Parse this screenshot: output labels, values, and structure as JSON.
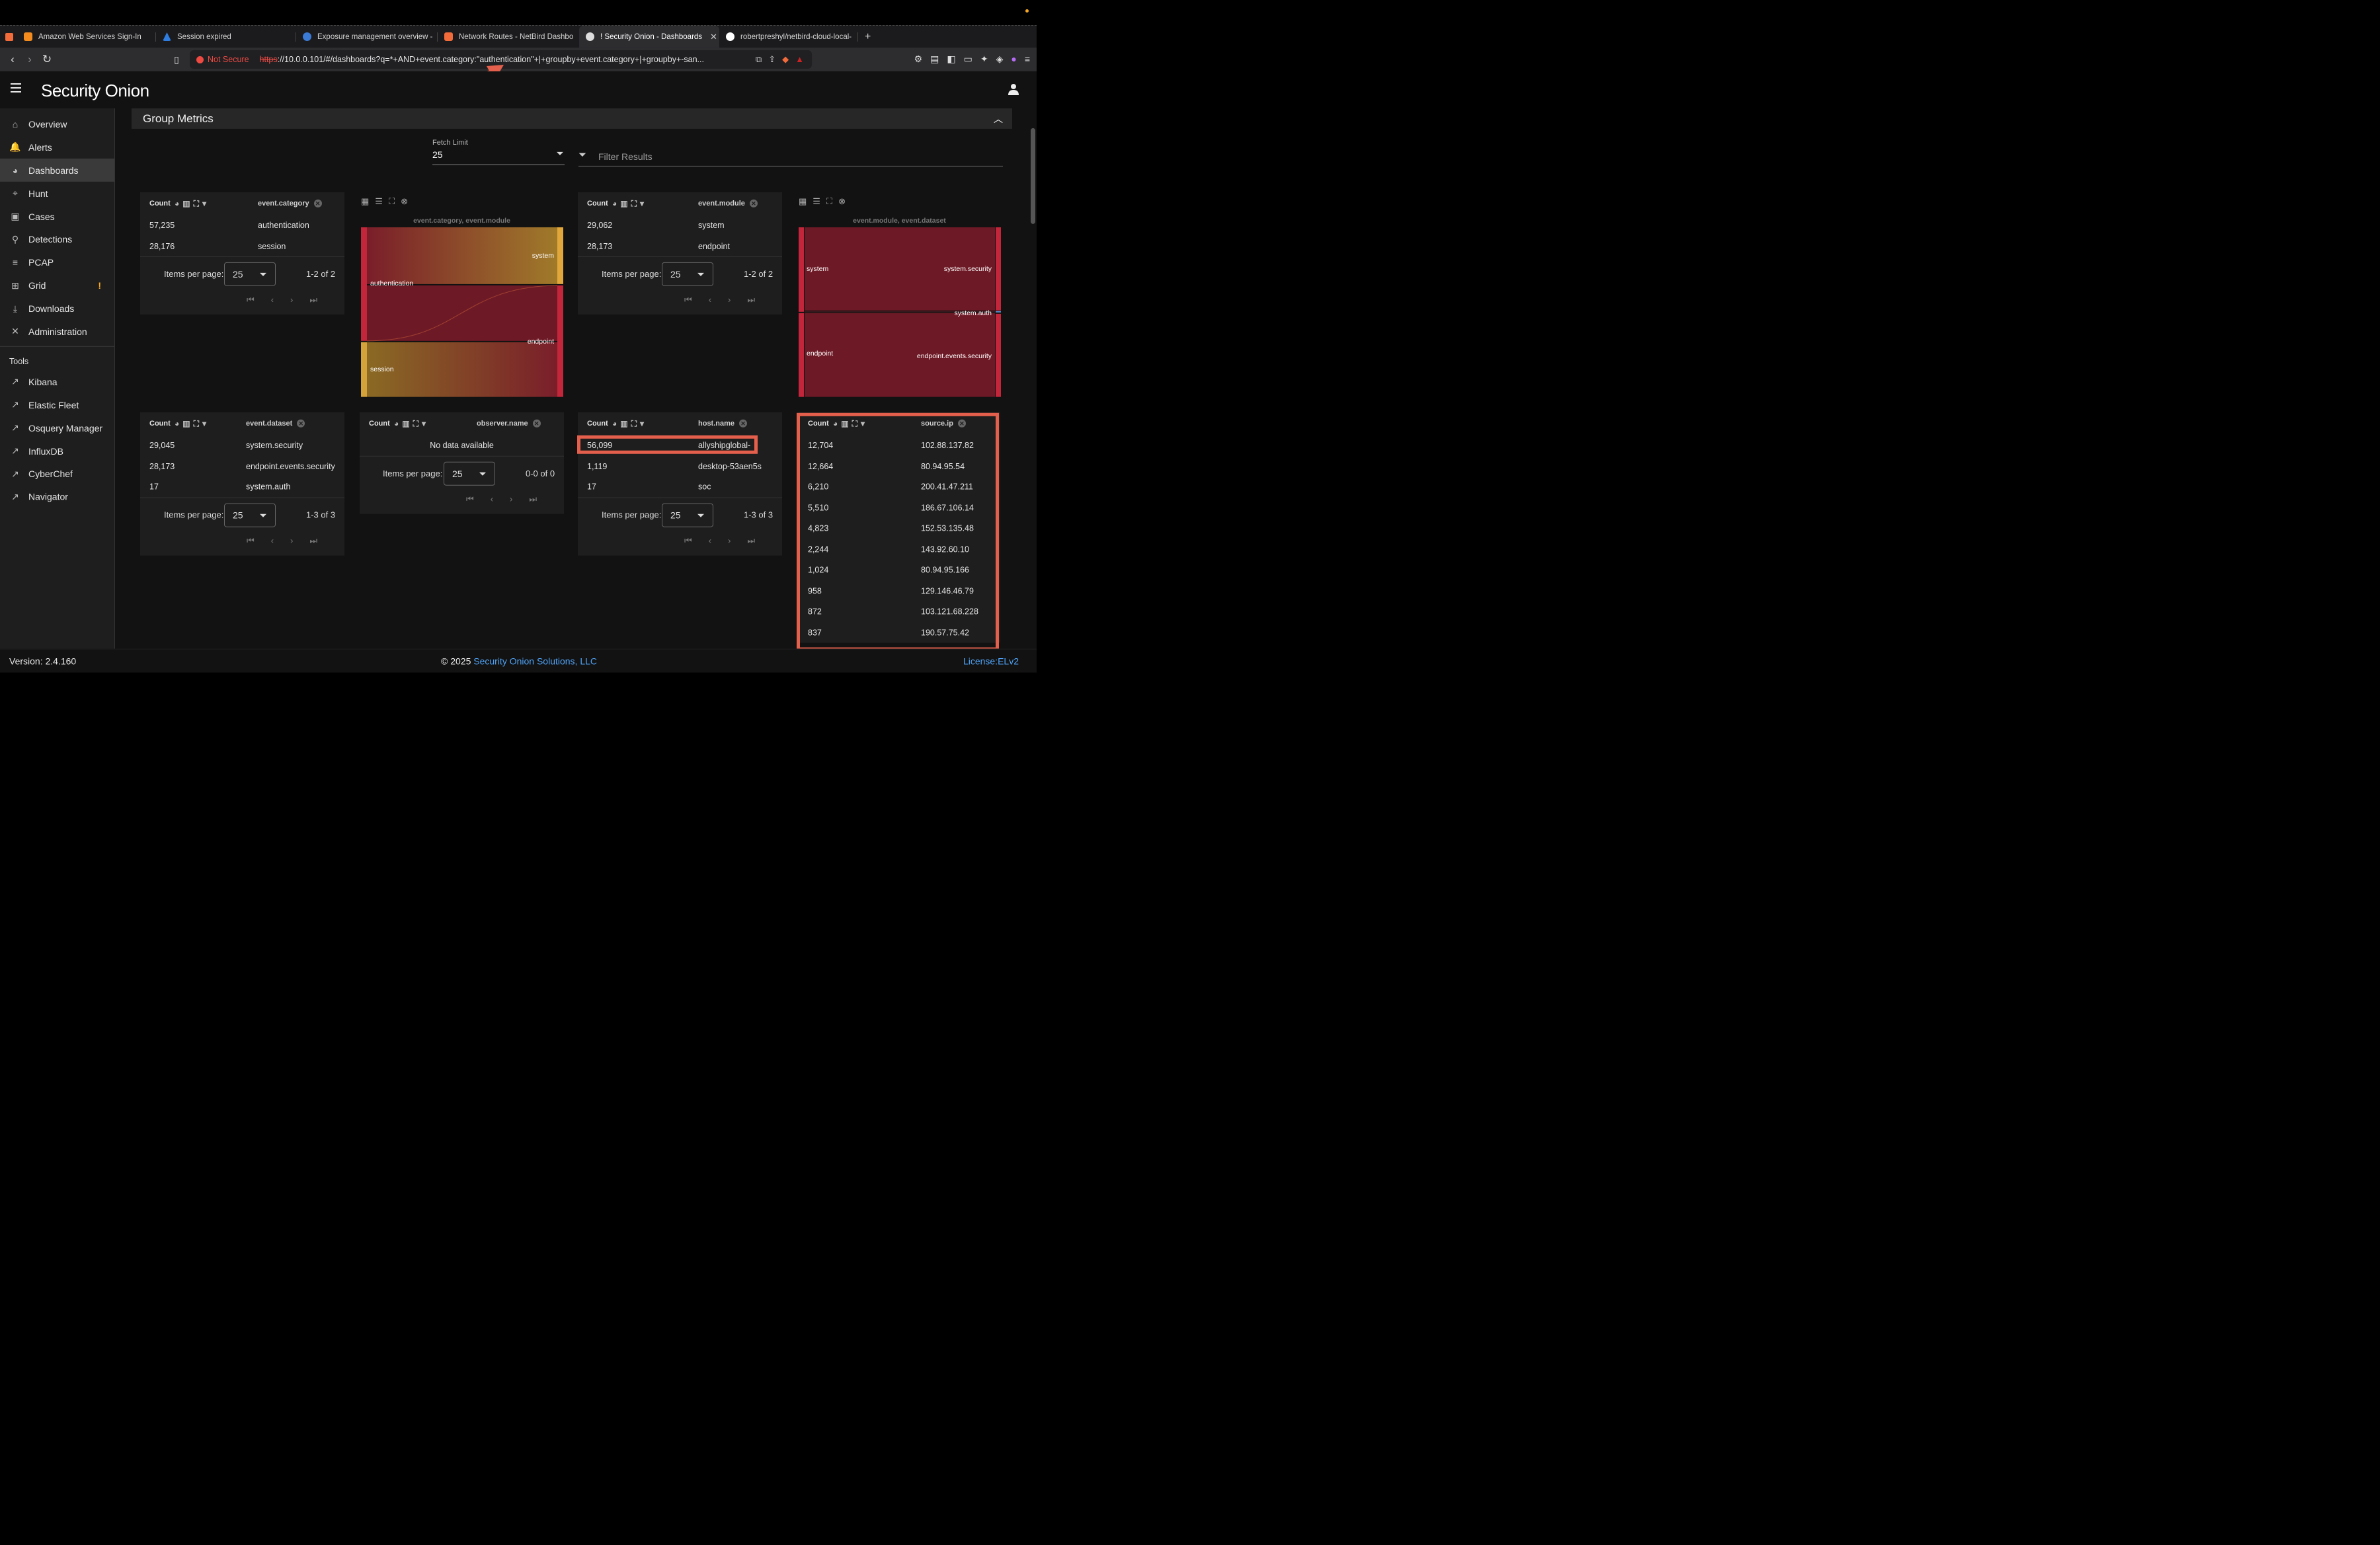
{
  "browser": {
    "tabs": [
      {
        "title": "Amazon Web Services Sign-In",
        "color": "#f38b1f"
      },
      {
        "title": "Session expired",
        "color": "#2f7de1"
      },
      {
        "title": "Exposure management overview -",
        "color": "#3b7bd6"
      },
      {
        "title": "Network Routes - NetBird Dashbo",
        "color": "#f26b3a"
      },
      {
        "title": "! Security Onion - Dashboards",
        "color": "#dddddd"
      },
      {
        "title": "robertpreshyl/netbird-cloud-local-",
        "color": "#ffffff"
      }
    ],
    "new_tab": "+",
    "not_secure": "Not Secure",
    "url_scheme": "https",
    "url_rest": "://10.0.0.101/#/dashboards?q=*+AND+event.category:\"authentication\"+|+groupby+event.category+|+groupby+-san..."
  },
  "app": {
    "name": "Security Onion",
    "version": "Version: 2.4.160",
    "copyright_prefix": "© 2025",
    "copyright_link": "Security Onion Solutions, LLC",
    "license": "License:ELv2"
  },
  "sidebar": {
    "items": [
      {
        "label": "Overview",
        "icon": "home-icon",
        "glyph": "⌂"
      },
      {
        "label": "Alerts",
        "icon": "bell-icon",
        "glyph": "🔔"
      },
      {
        "label": "Dashboards",
        "icon": "pie-chart-icon",
        "glyph": "◕"
      },
      {
        "label": "Hunt",
        "icon": "crosshair-icon",
        "glyph": "⌖"
      },
      {
        "label": "Cases",
        "icon": "briefcase-icon",
        "glyph": "▣"
      },
      {
        "label": "Detections",
        "icon": "search-icon",
        "glyph": "⚲"
      },
      {
        "label": "PCAP",
        "icon": "list-icon",
        "glyph": "≡"
      },
      {
        "label": "Grid",
        "icon": "grid-icon",
        "glyph": "⊞",
        "badge": "!"
      },
      {
        "label": "Downloads",
        "icon": "download-icon",
        "glyph": "⤓"
      },
      {
        "label": "Administration",
        "icon": "tools-icon",
        "glyph": "✕"
      }
    ],
    "tools_label": "Tools",
    "tools": [
      "Kibana",
      "Elastic Fleet",
      "Osquery Manager",
      "InfluxDB",
      "CyberChef",
      "Navigator"
    ]
  },
  "main": {
    "section_title": "Group Metrics",
    "fetch_limit_label": "Fetch Limit",
    "fetch_limit_value": "25",
    "filter_placeholder": "Filter Results",
    "items_per_page_label": "Items per page:",
    "items_per_page_value": "25",
    "count_label": "Count",
    "tables": {
      "category": {
        "field": "event.category",
        "rows": [
          [
            "57,235",
            "authentication"
          ],
          [
            "28,176",
            "session"
          ]
        ],
        "range": "1-2 of 2"
      },
      "module": {
        "field": "event.module",
        "rows": [
          [
            "29,062",
            "system"
          ],
          [
            "28,173",
            "endpoint"
          ]
        ],
        "range": "1-2 of 2"
      },
      "dataset": {
        "field": "event.dataset",
        "rows": [
          [
            "29,045",
            "system.security"
          ],
          [
            "28,173",
            "endpoint.events.security"
          ],
          [
            "17",
            "system.auth"
          ]
        ],
        "range": "1-3 of 3"
      },
      "observer": {
        "field": "observer.name",
        "empty": "No data available",
        "range": "0-0 of 0"
      },
      "host": {
        "field": "host.name",
        "rows": [
          [
            "56,099",
            "allyshipglobal-"
          ],
          [
            "1,119",
            "desktop-53aen5s"
          ],
          [
            "17",
            "soc"
          ]
        ],
        "range": "1-3 of 3"
      },
      "source": {
        "field": "source.ip",
        "rows": [
          [
            "12,704",
            "102.88.137.82"
          ],
          [
            "12,664",
            "80.94.95.54"
          ],
          [
            "6,210",
            "200.41.47.211"
          ],
          [
            "5,510",
            "186.67.106.14"
          ],
          [
            "4,823",
            "152.53.135.48"
          ],
          [
            "2,244",
            "143.92.60.10"
          ],
          [
            "1,024",
            "80.94.95.166"
          ],
          [
            "958",
            "129.146.46.79"
          ],
          [
            "872",
            "103.121.68.228"
          ],
          [
            "837",
            "190.57.75.42"
          ]
        ]
      }
    },
    "sankey1": {
      "title": "event.category, event.module",
      "labels": [
        "authentication",
        "session",
        "system",
        "endpoint"
      ]
    },
    "sankey2": {
      "title": "event.module, event.dataset",
      "labels": [
        "system",
        "endpoint",
        "system.security",
        "system.auth",
        "endpoint.events.security"
      ]
    }
  },
  "colors": {
    "accent_link": "#4fa3f7",
    "highlight_box": "#e5604c",
    "sankey_red": "#7a1e2a",
    "sankey_gold": "#e2a73a"
  }
}
